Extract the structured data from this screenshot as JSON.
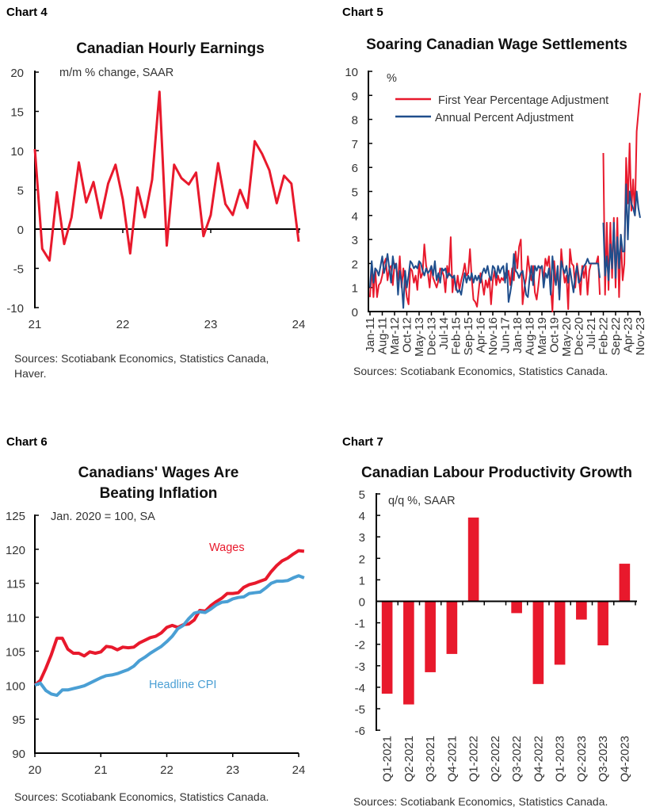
{
  "colors": {
    "red": "#e8192c",
    "navy": "#1f4e8c",
    "lightblue": "#4a9fd4"
  },
  "chart_data": [
    {
      "label": "Chart 4",
      "type": "line",
      "title": "Canadian Hourly Earnings",
      "subtitle": "m/m % change, SAAR",
      "ylim": [
        -10,
        20
      ],
      "yticks": [
        "20",
        "15",
        "10",
        "5",
        "0",
        "-5",
        "-10"
      ],
      "xticks": [
        "21",
        "22",
        "23",
        "24"
      ],
      "x_start": "Jan 2021",
      "x_end": "Jan 2024",
      "frequency": "monthly",
      "grid": false,
      "series": [
        {
          "color": "#e8192c",
          "values": [
            10.2,
            -2.5,
            -4.0,
            4.7,
            -1.9,
            1.5,
            8.5,
            3.4,
            6.0,
            1.4,
            5.8,
            8.2,
            3.8,
            -3.1,
            5.3,
            1.5,
            6.3,
            17.5,
            -2.1,
            8.2,
            6.5,
            5.7,
            7.2,
            -0.9,
            1.8,
            8.4,
            3.2,
            1.8,
            5.0,
            2.7,
            11.2,
            9.6,
            7.5,
            3.3,
            6.8,
            5.8,
            -1.6
          ]
        }
      ],
      "source": [
        "Sources: Scotiabank Economics, Statistics Canada,",
        "Haver."
      ]
    },
    {
      "label": "Chart 5",
      "type": "line",
      "title": "Soaring Canadian Wage Settlements",
      "ylabel": "%",
      "ylim": [
        0,
        10
      ],
      "yticks": [
        "10",
        "9",
        "8",
        "7",
        "6",
        "5",
        "4",
        "3",
        "2",
        "1",
        "0"
      ],
      "xticks": [
        "Jan-11",
        "Aug-11",
        "Mar-12",
        "Oct-12",
        "May-13",
        "Dec-13",
        "Jul-14",
        "Feb-15",
        "Sep-15",
        "Apr-16",
        "Nov-16",
        "Jun-17",
        "Jan-18",
        "Aug-18",
        "Mar-19",
        "Oct-19",
        "May-20",
        "Dec-20",
        "Jul-21",
        "Feb-22",
        "Sep-22",
        "Apr-23",
        "Nov-23"
      ],
      "x_start": "Jan-11",
      "x_end": "Nov-23",
      "frequency": "monthly",
      "legend": "top",
      "grid": false,
      "series": [
        {
          "name": "First Year Percentage Adjustment",
          "color": "#e8192c",
          "values": [
            0.6,
            1.9,
            0.6,
            1.8,
            0.6,
            1.1,
            1.2,
            1.5,
            2.0,
            2.2,
            1.3,
            1.8,
            1.9,
            1.1,
            2.0,
            1.8,
            1.3,
            2.3,
            1.0,
            1.8,
            1.2,
            0.6,
            0.3,
            1.8,
            1.7,
            1.2,
            1.5,
            0.9,
            2.0,
            1.4,
            1.6,
            2.8,
            1.9,
            1.6,
            1.0,
            1.9,
            1.4,
            1.2,
            1.0,
            1.3,
            1.8,
            1.7,
            1.5,
            0.8,
            1.9,
            1.5,
            3.1,
            0.8,
            1.5,
            0.9,
            1.5,
            0.9,
            1.3,
            1.6,
            2.0,
            1.5,
            1.6,
            2.6,
            1.4,
            0.5,
            0.4,
            0.2,
            0.9,
            1.6,
            1.2,
            0.7,
            1.3,
            1.0,
            1.4,
            0.3,
            1.3,
            1.7,
            1.1,
            1.5,
            1.2,
            1.4,
            1.3,
            1.6,
            1.4,
            1.7,
            1.1,
            1.8,
            1.3,
            2.5,
            1.8,
            2.7,
            3.0,
            0.3,
            1.0,
            1.4,
            2.3,
            1.7,
            1.3,
            1.9,
            0.8,
            0.5,
            1.1,
            1.8,
            1.9,
            1.3,
            2.2,
            1.9,
            2.3,
            1.1,
            0.0,
            2.1,
            1.2,
            1.6,
            0.6,
            2.6,
            1.8,
            1.2,
            1.5,
            0.1,
            2.6,
            2.0,
            1.9,
            1.0,
            2.0,
            1.5,
            0.7,
            1.9,
            1.4,
            1.9,
            0.7,
            1.7,
            2.0,
            2.0,
            2.0,
            2.0,
            2.3,
            0.7,
            null,
            6.6,
            0.7,
            3.7,
            0.9,
            3.7,
            1.4,
            3.9,
            1.0,
            3.9,
            0.6,
            3.2,
            1.3,
            2.0,
            6.4,
            4.5,
            7.0,
            4.2,
            5.5,
            4.0,
            7.5,
            8.3,
            9.1
          ]
        },
        {
          "name": "Annual Percent Adjustment",
          "color": "#1f4e8c",
          "values": [
            1.0,
            2.1,
            1.2,
            1.8,
            1.7,
            1.5,
            1.9,
            2.3,
            1.6,
            1.9,
            2.4,
            1.8,
            1.2,
            2.3,
            1.8,
            2.0,
            0.7,
            1.7,
            1.2,
            0.15,
            1.7,
            1.0,
            1.5,
            2.1,
            2.0,
            1.8,
            1.9,
            1.8,
            2.1,
            2.0,
            1.7,
            1.5,
            1.8,
            1.6,
            1.7,
            1.9,
            1.5,
            2.1,
            1.3,
            1.6,
            1.2,
            1.8,
            1.7,
            1.8,
            1.4,
            1.6,
            1.5,
            1.4,
            1.5,
            1.0,
            0.8,
            0.9,
            0.7,
            1.2,
            1.6,
            1.2,
            1.5,
            1.3,
            1.6,
            1.2,
            1.5,
            1.3,
            1.5,
            1.2,
            1.6,
            1.8,
            1.6,
            1.9,
            1.5,
            1.3,
            1.9,
            1.8,
            1.4,
            1.9,
            1.6,
            1.8,
            1.9,
            1.2,
            2.0,
            0.4,
            0.8,
            1.3,
            2.4,
            1.7,
            1.6,
            1.4,
            1.6,
            1.7,
            1.2,
            0.7,
            0.6,
            1.4,
            1.9,
            1.1,
            1.9,
            1.7,
            1.9,
            1.8,
            1.9,
            1.0,
            1.6,
            1.4,
            1.8,
            0.7,
            2.3,
            1.5,
            1.1,
            1.9,
            0.5,
            2.1,
            1.8,
            1.6,
            1.9,
            1.2,
            1.8,
            1.3,
            0.8,
            1.5,
            1.9,
            1.2,
            1.3,
            1.7,
            1.9,
            2.0,
            2.2,
            2.0,
            2.0,
            2.0,
            2.0,
            2.0,
            2.0,
            1.4,
            null,
            3.7,
            1.5,
            2.3,
            1.3,
            2.8,
            1.8,
            3.7,
            1.4,
            3.1,
            1.8,
            3.2,
            2.5,
            2.5,
            5.3,
            3.0,
            5.0,
            4.5,
            4.3,
            4.0,
            5.0,
            4.3,
            3.9
          ]
        }
      ],
      "source": [
        "Sources: Scotiabank Economics, Statistics Canada."
      ]
    },
    {
      "label": "Chart 6",
      "type": "line",
      "title": [
        "Canadians' Wages Are",
        "Beating Inflation"
      ],
      "subtitle": "Jan. 2020 = 100, SA",
      "ylim": [
        90,
        125
      ],
      "yticks": [
        "125",
        "120",
        "115",
        "110",
        "105",
        "100",
        "95",
        "90"
      ],
      "xticks": [
        "20",
        "21",
        "22",
        "23",
        "24"
      ],
      "x_start": "Jan 2020",
      "x_end": "Jan 2024",
      "frequency": "monthly",
      "grid": false,
      "series": [
        {
          "name": "Wages",
          "color": "#e8192c",
          "values": [
            100,
            100.7,
            102.5,
            104.5,
            106.9,
            106.9,
            105.3,
            104.7,
            104.7,
            104.3,
            104.9,
            104.7,
            104.9,
            105.7,
            105.6,
            105.2,
            105.6,
            105.5,
            105.6,
            106.2,
            106.6,
            107.0,
            107.2,
            107.7,
            108.5,
            108.8,
            108.5,
            108.9,
            109.0,
            109.6,
            111.0,
            110.9,
            111.7,
            112.3,
            112.8,
            113.5,
            113.5,
            113.6,
            114.4,
            114.8,
            115.0,
            115.3,
            115.6,
            116.7,
            117.6,
            118.3,
            118.7,
            119.3,
            119.8,
            119.7
          ]
        },
        {
          "name": "Headline CPI",
          "color": "#4a9fd4",
          "values": [
            100,
            100.3,
            99.2,
            98.7,
            98.5,
            99.3,
            99.3,
            99.5,
            99.7,
            99.9,
            100.3,
            100.7,
            101.1,
            101.4,
            101.5,
            101.7,
            102.0,
            102.3,
            102.8,
            103.6,
            104.1,
            104.7,
            105.2,
            105.7,
            106.4,
            107.2,
            108.3,
            108.8,
            109.8,
            110.6,
            110.8,
            110.7,
            111.2,
            111.8,
            112.2,
            112.3,
            112.7,
            112.9,
            113.0,
            113.5,
            113.6,
            113.7,
            114.3,
            115.0,
            115.3,
            115.3,
            115.4,
            115.8,
            116.1,
            115.8
          ]
        }
      ],
      "source": [
        "Sources: Scotiabank Economics, Statistics Canada."
      ]
    },
    {
      "label": "Chart 7",
      "type": "bar",
      "title": "Canadian Labour Productivity Growth",
      "subtitle": "q/q %, SAAR",
      "ylim": [
        -6,
        5
      ],
      "yticks": [
        "5",
        "4",
        "3",
        "2",
        "1",
        "0",
        "-1",
        "-2",
        "-3",
        "-4",
        "-5",
        "-6"
      ],
      "categories": [
        "Q1-2021",
        "Q2-2021",
        "Q3-2021",
        "Q4-2021",
        "Q1-2022",
        "Q2-2022",
        "Q3-2022",
        "Q4-2022",
        "Q1-2023",
        "Q2-2023",
        "Q3-2023",
        "Q4-2023"
      ],
      "values": [
        -4.3,
        -4.8,
        -3.3,
        -2.45,
        3.9,
        0,
        -0.55,
        -3.85,
        -2.95,
        -0.85,
        -2.05,
        1.75
      ],
      "color": "#e8192c",
      "grid": false,
      "source": [
        "Sources: Scotiabank Economics, Statistics Canada."
      ]
    }
  ]
}
